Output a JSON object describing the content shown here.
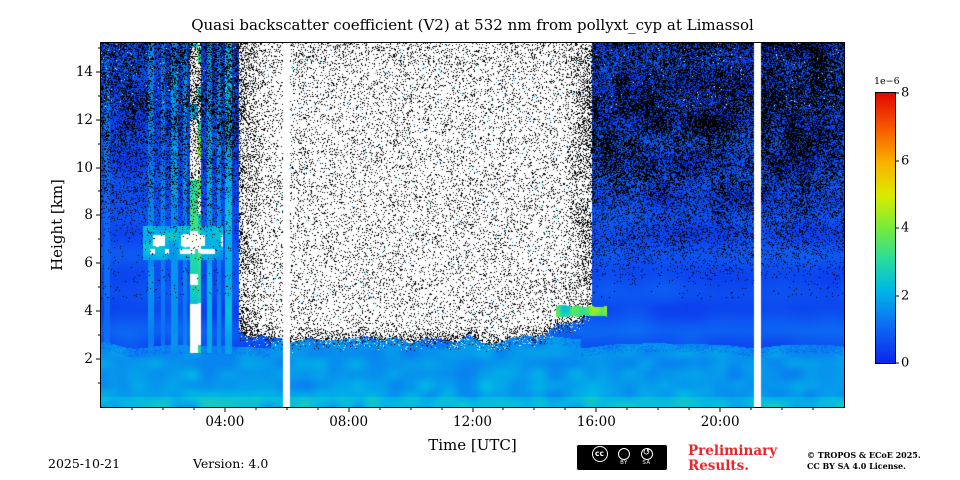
{
  "title": "Quasi backscatter coefficient (V2) at 532 nm from pollyxt_cyp at Limassol",
  "footer": {
    "date": "2025-10-21",
    "version": "Version: 4.0",
    "preliminary_line1": "Preliminary",
    "preliminary_line2": "Results.",
    "preliminary_color": "#e8262d",
    "license_line1": "© TROPOS & ECoE 2025.",
    "license_line2": "CC BY SA 4.0 License.",
    "cc_label_cc": "cc",
    "cc_label_by": "BY",
    "cc_label_sa": "SA"
  },
  "chart_data": {
    "type": "heatmap",
    "title": "Quasi backscatter coefficient (V2) at 532 nm from pollyxt_cyp at Limassol",
    "xlabel": "Time [UTC]",
    "ylabel": "Height [km]",
    "x_range_hours": [
      0,
      24
    ],
    "x_ticks": [
      {
        "hour": 4,
        "label": "04:00"
      },
      {
        "hour": 8,
        "label": "08:00"
      },
      {
        "hour": 12,
        "label": "12:00"
      },
      {
        "hour": 16,
        "label": "16:00"
      },
      {
        "hour": 20,
        "label": "20:00"
      }
    ],
    "y_range_km": [
      0,
      15.2
    ],
    "y_ticks": [
      2,
      4,
      6,
      8,
      10,
      12,
      14
    ],
    "colorbar": {
      "exponent_label": "1e−6",
      "ticks": [
        0,
        2,
        4,
        6,
        8
      ],
      "min": 0,
      "max": 8,
      "unit_scale": 1e-06
    },
    "colormap_stops": [
      [
        0.0,
        11,
        40,
        235
      ],
      [
        0.14,
        13,
        110,
        245
      ],
      [
        0.27,
        0,
        185,
        230
      ],
      [
        0.38,
        40,
        220,
        160
      ],
      [
        0.5,
        120,
        235,
        60
      ],
      [
        0.62,
        220,
        235,
        0
      ],
      [
        0.74,
        250,
        180,
        0
      ],
      [
        0.87,
        248,
        90,
        0
      ],
      [
        1.0,
        225,
        10,
        0
      ]
    ],
    "render": {
      "t_range": [
        0,
        24
      ],
      "h_range": [
        0,
        15.2
      ],
      "background_value": 0.5,
      "boundary_layer": {
        "top_km": 2.35,
        "value": 1.45
      },
      "white_region": {
        "t0": 4.45,
        "t1": 15.85,
        "bottom_km": 2.55,
        "speckle_density": 0.13
      },
      "night_speckle": {
        "left": {
          "start_km": 6.8,
          "max_density": 0.4
        },
        "right": {
          "start_km": 5.2,
          "max_density": 0.6
        }
      },
      "gaps_hours": [
        6.0,
        21.2
      ],
      "gap_width_hours": 0.11,
      "cloud_streaks": [
        {
          "t": 0.2,
          "w": 0.1,
          "s": 0.5
        },
        {
          "t": 1.62,
          "w": 0.09,
          "s": 0.9
        },
        {
          "t": 2.0,
          "w": 0.06,
          "s": 0.7
        },
        {
          "t": 2.38,
          "w": 0.11,
          "s": 1.1
        },
        {
          "t": 2.72,
          "w": 0.07,
          "s": 0.8
        },
        {
          "t": 3.02,
          "w": 0.13,
          "s": 2.4
        },
        {
          "t": 3.18,
          "w": 0.05,
          "s": 3.2
        },
        {
          "t": 3.5,
          "w": 0.09,
          "s": 1.3
        },
        {
          "t": 3.82,
          "w": 0.07,
          "s": 0.9
        },
        {
          "t": 4.12,
          "w": 0.1,
          "s": 1.6
        }
      ],
      "pearl_layer": {
        "t0": 1.35,
        "t1": 3.95,
        "km": 6.95,
        "km_secondary": 6.5
      },
      "green_layer": {
        "t0": 14.7,
        "t1": 16.35,
        "km": 4.0
      }
    }
  }
}
